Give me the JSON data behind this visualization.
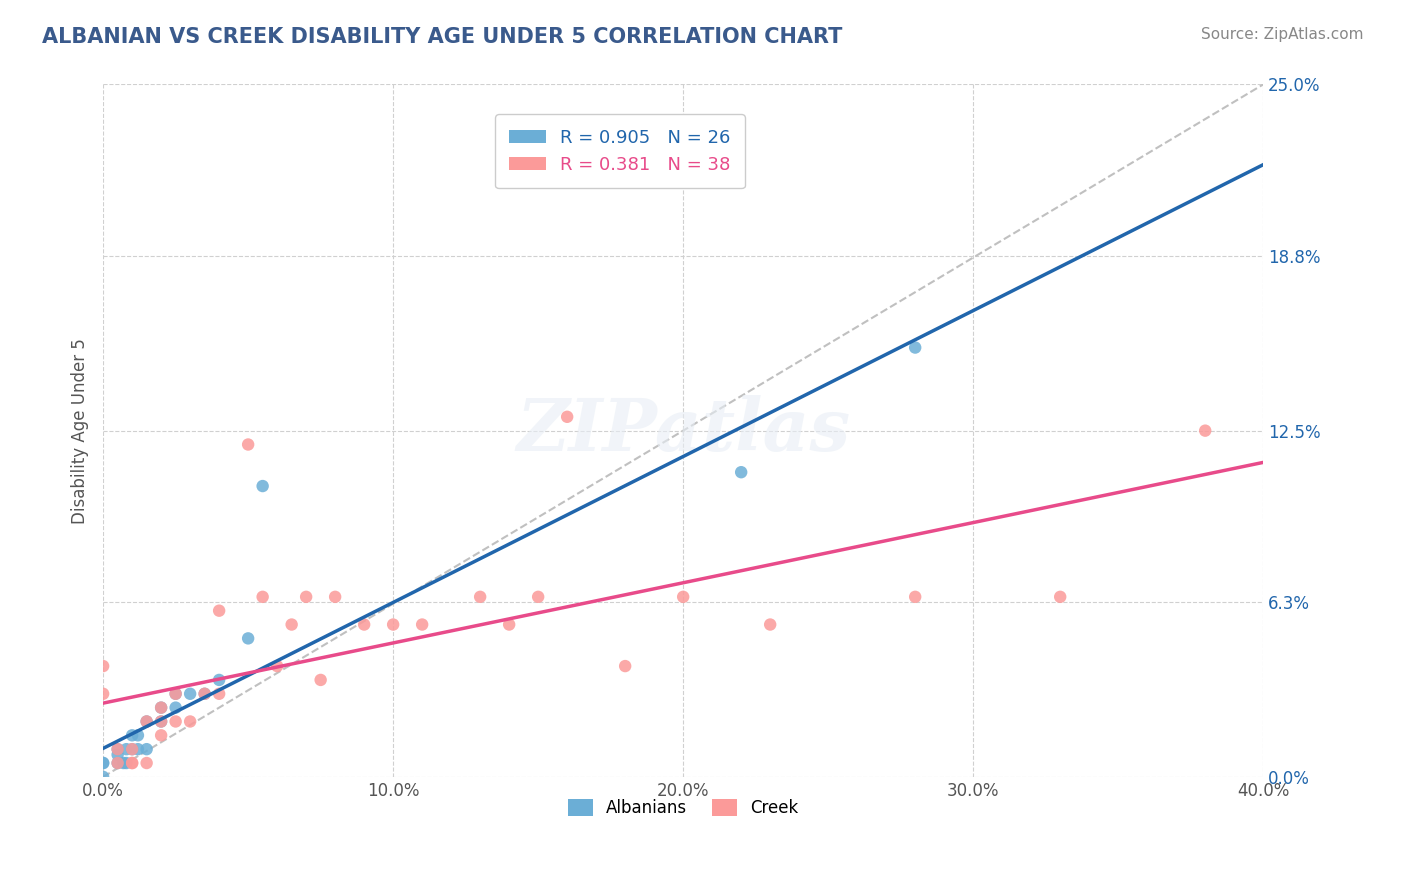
{
  "title": "ALBANIAN VS CREEK DISABILITY AGE UNDER 5 CORRELATION CHART",
  "source_text": "Source: ZipAtlas.com",
  "xlabel_bottom": "",
  "ylabel": "Disability Age Under 5",
  "x_min": 0.0,
  "x_max": 0.4,
  "y_min": 0.0,
  "y_max": 0.25,
  "x_ticks": [
    0.0,
    0.1,
    0.2,
    0.3,
    0.4
  ],
  "x_tick_labels": [
    "0.0%",
    "10.0%",
    "20.0%",
    "30.0%",
    "40.0%"
  ],
  "y_tick_labels_right": [
    "0.0%",
    "6.3%",
    "12.5%",
    "18.8%",
    "25.0%"
  ],
  "y_ticks_right": [
    0.0,
    0.063,
    0.125,
    0.188,
    0.25
  ],
  "albanian_color": "#6baed6",
  "creek_color": "#fb9a99",
  "trendline_albanian_color": "#2166ac",
  "trendline_creek_color": "#e84b8a",
  "diagonal_color": "#c0c0c0",
  "R_albanian": 0.905,
  "N_albanian": 26,
  "R_creek": 0.381,
  "N_creek": 38,
  "albanian_x": [
    0.0,
    0.0,
    0.0,
    0.005,
    0.005,
    0.005,
    0.007,
    0.008,
    0.008,
    0.01,
    0.01,
    0.012,
    0.012,
    0.015,
    0.015,
    0.02,
    0.02,
    0.025,
    0.025,
    0.03,
    0.035,
    0.04,
    0.05,
    0.055,
    0.22,
    0.28
  ],
  "albanian_y": [
    0.0,
    0.005,
    0.005,
    0.005,
    0.008,
    0.01,
    0.005,
    0.005,
    0.01,
    0.01,
    0.015,
    0.01,
    0.015,
    0.01,
    0.02,
    0.02,
    0.025,
    0.025,
    0.03,
    0.03,
    0.03,
    0.035,
    0.05,
    0.105,
    0.11,
    0.155
  ],
  "creek_x": [
    0.0,
    0.0,
    0.005,
    0.005,
    0.01,
    0.01,
    0.01,
    0.015,
    0.015,
    0.02,
    0.02,
    0.02,
    0.025,
    0.025,
    0.03,
    0.035,
    0.04,
    0.04,
    0.05,
    0.055,
    0.06,
    0.065,
    0.07,
    0.075,
    0.08,
    0.09,
    0.1,
    0.11,
    0.13,
    0.14,
    0.15,
    0.16,
    0.18,
    0.2,
    0.23,
    0.28,
    0.33,
    0.38
  ],
  "creek_y": [
    0.03,
    0.04,
    0.005,
    0.01,
    0.005,
    0.005,
    0.01,
    0.005,
    0.02,
    0.015,
    0.02,
    0.025,
    0.02,
    0.03,
    0.02,
    0.03,
    0.03,
    0.06,
    0.12,
    0.065,
    0.04,
    0.055,
    0.065,
    0.035,
    0.065,
    0.055,
    0.055,
    0.055,
    0.065,
    0.055,
    0.065,
    0.13,
    0.04,
    0.065,
    0.055,
    0.065,
    0.065,
    0.125
  ],
  "watermark": "ZIPatlas",
  "background_color": "#ffffff",
  "grid_color": "#d0d0d0"
}
